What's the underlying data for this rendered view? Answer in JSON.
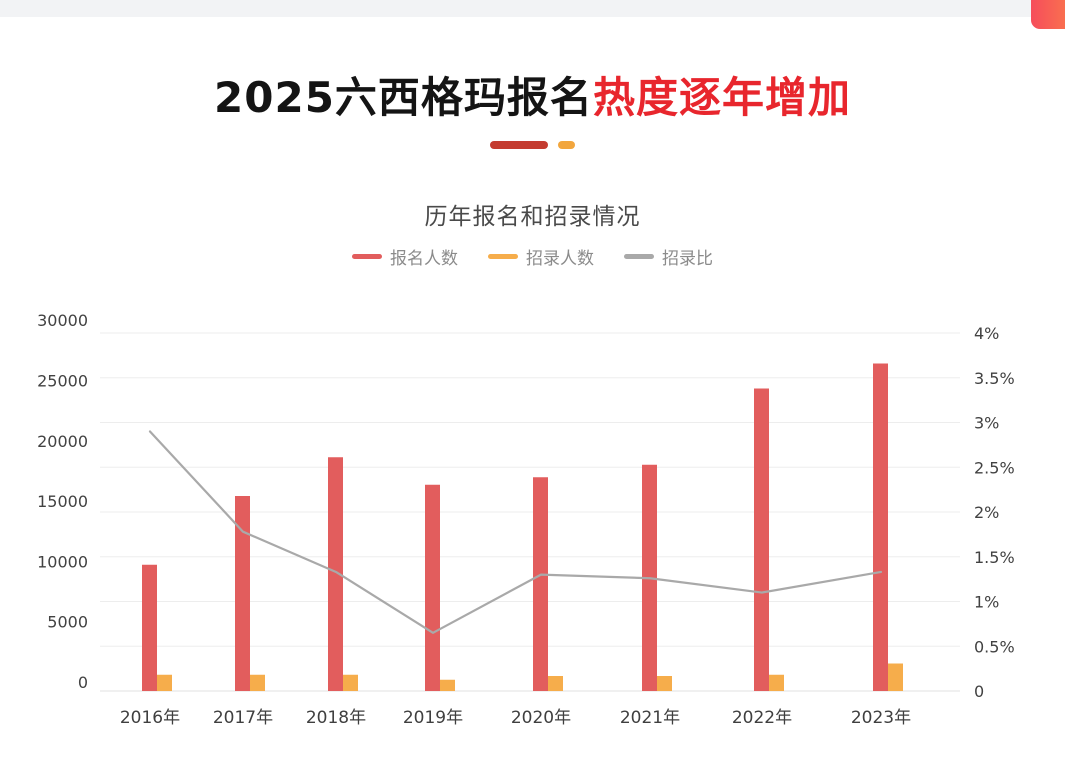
{
  "page": {
    "title_black": "2025六西格玛报名",
    "title_red": "热度逐年增加"
  },
  "chart_data": {
    "type": "combo",
    "title": "历年报名和招录情况",
    "categories": [
      "2016年",
      "2017年",
      "2018年",
      "2019年",
      "2020年",
      "2021年",
      "2022年",
      "2023年"
    ],
    "series": [
      {
        "name": "报名人数",
        "type": "bar",
        "axis": "left",
        "color": "#e25d5d",
        "values": [
          10100,
          15600,
          18700,
          16500,
          17100,
          18100,
          24200,
          26200
        ]
      },
      {
        "name": "招录人数",
        "type": "bar",
        "axis": "left",
        "color": "#f6ad4b",
        "values": [
          1300,
          1300,
          1300,
          900,
          1200,
          1200,
          1300,
          2200
        ]
      },
      {
        "name": "招录比",
        "type": "line",
        "axis": "right",
        "color": "#a9a9a9",
        "values_percent": [
          2.9,
          1.78,
          1.33,
          0.65,
          1.3,
          1.26,
          1.1,
          1.33
        ]
      }
    ],
    "left_axis": {
      "min": 0,
      "max": 30000,
      "tick_labels": [
        "0",
        "5000",
        "10000",
        "15000",
        "20000",
        "25000",
        "30000"
      ]
    },
    "right_axis": {
      "min": 0,
      "max": 4,
      "tick_labels": [
        "0",
        "0.5%",
        "1%",
        "1.5%",
        "2%",
        "2.5%",
        "3%",
        "3.5%",
        "4%"
      ]
    },
    "grid": true,
    "legend_position": "top"
  },
  "colors": {
    "title_red": "#e8262d",
    "underline_red": "#c43b30",
    "underline_orange": "#f2a63d",
    "gridline": "#ededed"
  }
}
